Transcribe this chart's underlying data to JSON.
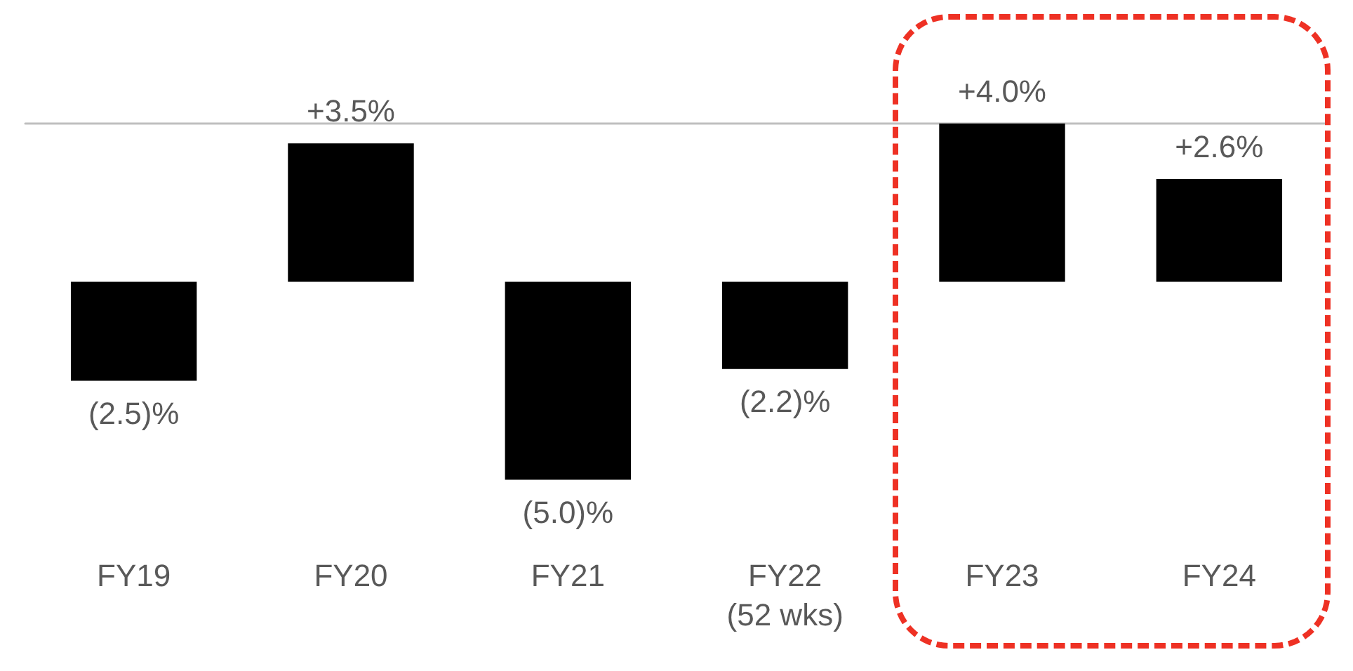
{
  "chart_data": {
    "type": "bar",
    "categories": [
      "FY19",
      "FY20",
      "FY21",
      "FY22\n(52 wks)",
      "FY23",
      "FY24"
    ],
    "values": [
      -2.5,
      3.5,
      -5.0,
      -2.2,
      4.0,
      2.6
    ],
    "value_labels": [
      "(2.5)%",
      "+3.5%",
      "(5.0)%",
      "(2.2)%",
      "+4.0%",
      "+2.6%"
    ],
    "color": "#000000"
  }
}
